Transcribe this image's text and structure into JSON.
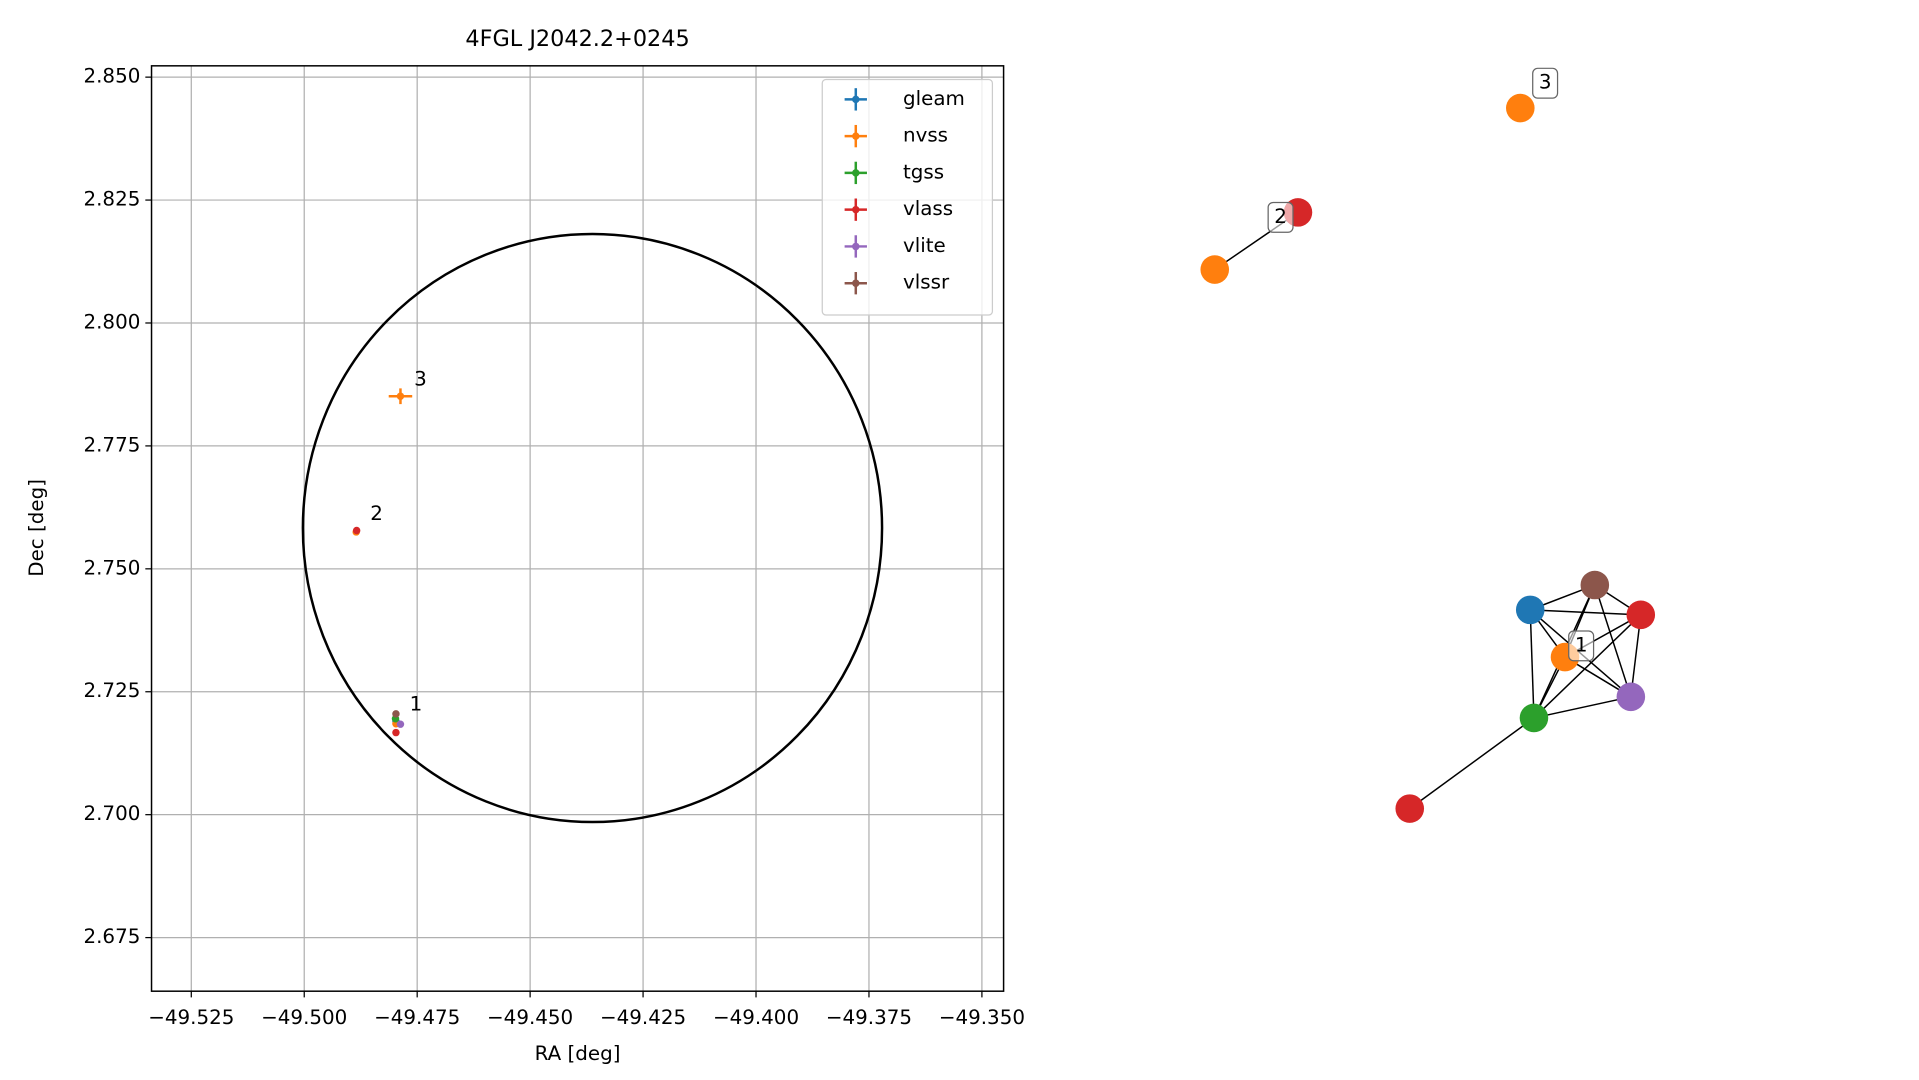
{
  "chart_data": {
    "type": "scatter",
    "title": "4FGL J2042.2+0245",
    "x_label": "RA [deg]",
    "y_label": "Dec [deg]",
    "xlim": [
      -49.5338,
      -49.3452
    ],
    "ylim": [
      2.6641,
      2.8523
    ],
    "xticks": [
      {
        "value": -49.525,
        "label": "−49.525"
      },
      {
        "value": -49.5,
        "label": "−49.500"
      },
      {
        "value": -49.475,
        "label": "−49.475"
      },
      {
        "value": -49.45,
        "label": "−49.450"
      },
      {
        "value": -49.425,
        "label": "−49.425"
      },
      {
        "value": -49.4,
        "label": "−49.400"
      },
      {
        "value": -49.375,
        "label": "−49.375"
      },
      {
        "value": -49.35,
        "label": "−49.350"
      }
    ],
    "yticks": [
      2.675,
      {
        "value": 2.7,
        "label": "2.700"
      },
      2.725,
      {
        "value": 2.75,
        "label": "2.750"
      },
      2.775,
      {
        "value": 2.8,
        "label": "2.800"
      },
      2.825,
      {
        "value": 2.85,
        "label": "2.850"
      }
    ],
    "grid": true,
    "legend": "upper right",
    "series": [
      {
        "name": "gleam",
        "color": "#1f77b4",
        "x": [
          -49.4797
        ],
        "y": [
          2.719
        ],
        "xerr": [
          0.0004
        ],
        "yerr": [
          0.0004
        ]
      },
      {
        "name": "nvss",
        "color": "#ff7f0e",
        "x": [
          -49.4797,
          -49.4885,
          -49.4787
        ],
        "y": [
          2.7185,
          2.7575,
          2.7851
        ],
        "xerr": [
          0.0004,
          0.0004,
          0.0026
        ],
        "yerr": [
          0.0004,
          0.0004,
          0.0016
        ]
      },
      {
        "name": "tgss",
        "color": "#2ca02c",
        "x": [
          -49.4798
        ],
        "y": [
          2.7195
        ],
        "xerr": [
          0.0004
        ],
        "yerr": [
          0.0004
        ]
      },
      {
        "name": "vlass",
        "color": "#d62728",
        "x": [
          -49.4797,
          -49.4884
        ],
        "y": [
          2.7167,
          2.7578
        ],
        "xerr": [
          0.0003,
          0.0003
        ],
        "yerr": [
          0.0003,
          0.0003
        ]
      },
      {
        "name": "vlite",
        "color": "#9467bd",
        "x": [
          -49.4787
        ],
        "y": [
          2.7184
        ],
        "xerr": [
          0.0004
        ],
        "yerr": [
          0.0004
        ]
      },
      {
        "name": "vlssr",
        "color": "#8c564b",
        "x": [
          -49.4797
        ],
        "y": [
          2.7205
        ],
        "xerr": [
          0.0004
        ],
        "yerr": [
          0.0004
        ]
      }
    ],
    "region": {
      "ra": -49.4362,
      "dec": 2.7583,
      "ra_radius": 0.0641,
      "dec_radius": 0.0598
    },
    "annotations": [
      {
        "text": "1",
        "x": -49.4797,
        "y": 2.719
      },
      {
        "text": "2",
        "x": -49.4884,
        "y": 2.7578
      },
      {
        "text": "3",
        "x": -49.4787,
        "y": 2.7851
      }
    ],
    "network": {
      "nodes": [
        {
          "series": 1
        },
        {
          "series": 3
        },
        {
          "series": 1
        },
        {
          "series": 0
        },
        {
          "series": 5
        },
        {
          "series": 3
        },
        {
          "series": 1
        },
        {
          "series": 4
        },
        {
          "series": 2
        },
        {
          "series": 3
        }
      ],
      "edges": [
        [
          0,
          1
        ],
        [
          3,
          4
        ],
        [
          3,
          5
        ],
        [
          3,
          6
        ],
        [
          3,
          7
        ],
        [
          3,
          8
        ],
        [
          4,
          5
        ],
        [
          4,
          6
        ],
        [
          4,
          7
        ],
        [
          4,
          8
        ],
        [
          5,
          6
        ],
        [
          5,
          7
        ],
        [
          5,
          8
        ],
        [
          6,
          7
        ],
        [
          6,
          8
        ],
        [
          7,
          8
        ],
        [
          8,
          9
        ]
      ],
      "labels": [
        {
          "text": "1",
          "node": 6
        },
        {
          "text": "2",
          "node": 1
        },
        {
          "text": "3",
          "node": 2
        }
      ]
    }
  }
}
